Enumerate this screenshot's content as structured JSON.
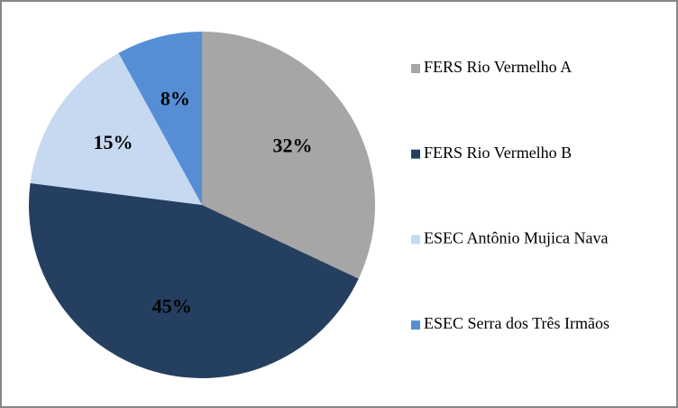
{
  "chart_data": {
    "type": "pie",
    "categories": [
      "FERS Rio Vermelho A",
      "FERS Rio Vermelho B",
      "ESEC Antônio Mujica  Nava",
      "ESEC Serra dos Três Irmãos"
    ],
    "values": [
      32,
      45,
      15,
      8
    ],
    "value_labels": [
      "32%",
      "45%",
      "15%",
      "8%"
    ],
    "colors": [
      "#a6a6a6",
      "#253f60",
      "#c6d9f1",
      "#558ed5"
    ],
    "legend": "right"
  }
}
